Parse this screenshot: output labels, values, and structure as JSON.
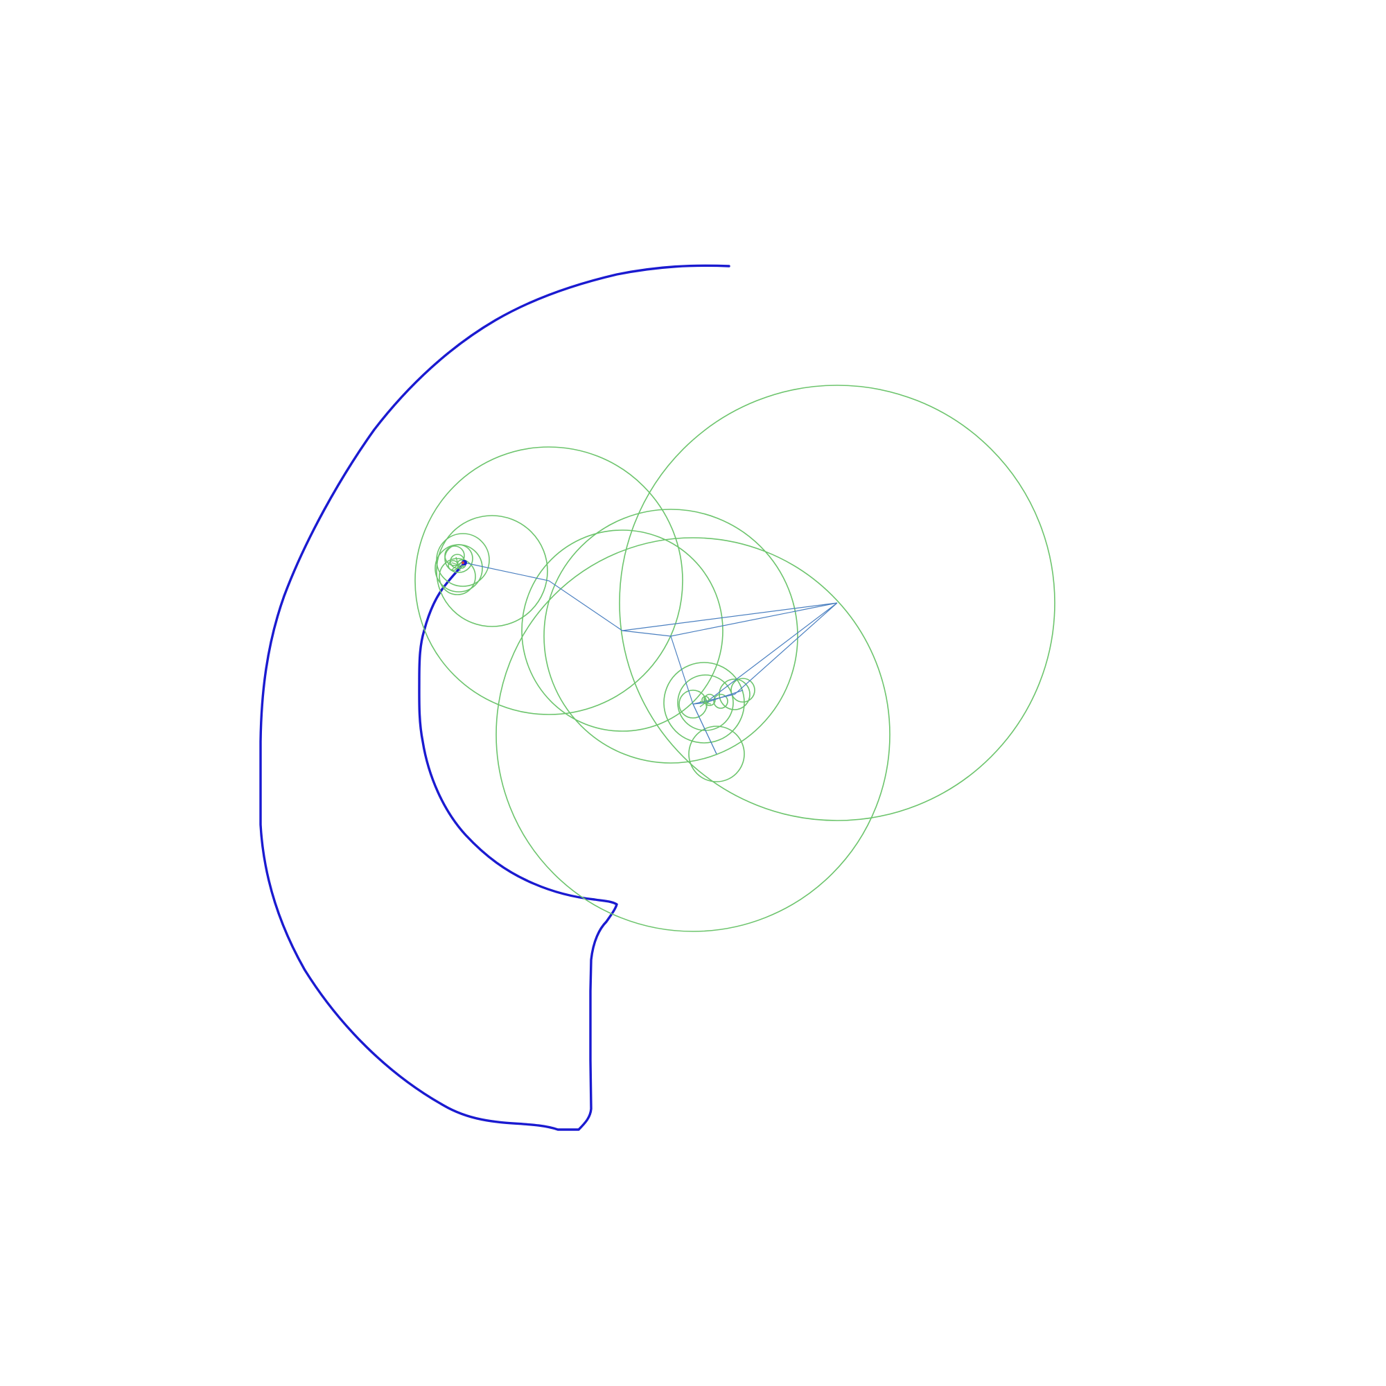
{
  "diagram": {
    "kind": "fourier-epicycle-drawing",
    "colors": {
      "background": "#ffffff",
      "circle": "#6cc46c",
      "arm": "#4a7fc0",
      "trace": "#1a1ad0",
      "pen_tip": "#d04040"
    }
  }
}
